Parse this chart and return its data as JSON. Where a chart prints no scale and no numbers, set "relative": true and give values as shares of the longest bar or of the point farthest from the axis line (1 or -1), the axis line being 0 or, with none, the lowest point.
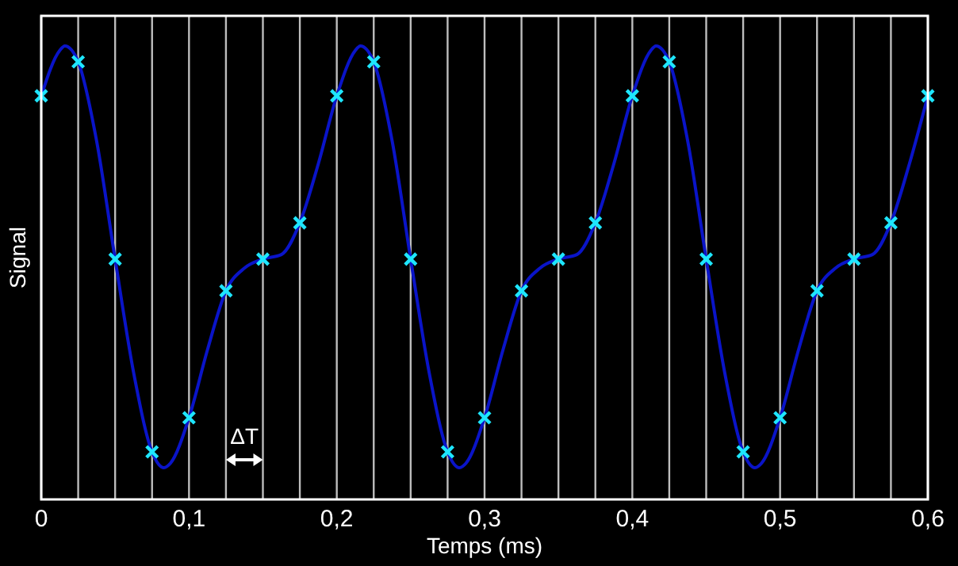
{
  "chart_data": {
    "type": "line",
    "relative": true,
    "xlabel": "Temps (ms)",
    "ylabel": "Signal",
    "xlim": [
      0,
      0.6
    ],
    "xticks": [
      0,
      {
        "value": 0.025,
        "label": null
      },
      {
        "value": 0.05,
        "label": null
      },
      {
        "value": 0.075,
        "label": null
      },
      {
        "value": 0.1,
        "label": "0,1"
      },
      {
        "value": 0.125,
        "label": null
      },
      {
        "value": 0.15,
        "label": null
      },
      {
        "value": 0.175,
        "label": null
      },
      {
        "value": 0.2,
        "label": "0,2"
      },
      {
        "value": 0.225,
        "label": null
      },
      {
        "value": 0.25,
        "label": null
      },
      {
        "value": 0.275,
        "label": null
      },
      {
        "value": 0.3,
        "label": "0,3"
      },
      {
        "value": 0.325,
        "label": null
      },
      {
        "value": 0.35,
        "label": null
      },
      {
        "value": 0.375,
        "label": null
      },
      {
        "value": 0.4,
        "label": "0,4"
      },
      {
        "value": 0.425,
        "label": null
      },
      {
        "value": 0.45,
        "label": null
      },
      {
        "value": 0.475,
        "label": null
      },
      {
        "value": 0.5,
        "label": "0,5"
      },
      {
        "value": 0.525,
        "label": null
      },
      {
        "value": 0.55,
        "label": null
      },
      {
        "value": 0.575,
        "label": null
      },
      {
        "value": 0.6,
        "label": "0,6"
      }
    ],
    "grid": "x",
    "annotations": [
      "ΔT"
    ],
    "series": [
      {
        "color": "#0a14c8",
        "marker": "none",
        "x": [
          0,
          0.0125,
          0.016,
          0.025,
          0.0375,
          0.05,
          0.0625,
          0.075,
          0.083,
          0.0875,
          0.1,
          0.1125,
          0.125,
          0.1375,
          0.15,
          0.1625,
          0.175,
          0.1875,
          0.2,
          0.2125,
          0.216,
          0.225,
          0.2375,
          0.25,
          0.2625,
          0.275,
          0.283,
          0.2875,
          0.3,
          0.3125,
          0.325,
          0.3375,
          0.35,
          0.3625,
          0.375,
          0.3875,
          0.4,
          0.4125,
          0.416,
          0.425,
          0.4375,
          0.45,
          0.4625,
          0.475,
          0.483,
          0.4875,
          0.5,
          0.5125,
          0.525,
          0.5375,
          0.55,
          0.5625,
          0.575,
          0.5875,
          0.6
        ],
        "values": [
          0.89,
          0.99,
          1,
          0.965,
          0.79,
          0.53,
          0.28,
          0.105,
          0.07,
          0.08,
          0.18,
          0.33,
          0.46,
          0.51,
          0.53,
          0.54,
          0.61,
          0.74,
          0.89,
          0.99,
          1,
          0.965,
          0.79,
          0.53,
          0.28,
          0.105,
          0.07,
          0.08,
          0.18,
          0.33,
          0.46,
          0.51,
          0.53,
          0.54,
          0.61,
          0.74,
          0.89,
          0.99,
          1,
          0.965,
          0.79,
          0.53,
          0.28,
          0.105,
          0.07,
          0.08,
          0.18,
          0.33,
          0.46,
          0.51,
          0.53,
          0.54,
          0.61,
          0.74,
          0.89
        ]
      },
      {
        "type": "scatter",
        "color": "#1ee6ff",
        "marker": "cross",
        "x": [
          0,
          0.025,
          0.05,
          0.075,
          0.1,
          0.125,
          0.15,
          0.175,
          0.2,
          0.225,
          0.25,
          0.275,
          0.3,
          0.325,
          0.35,
          0.375,
          0.4,
          0.425,
          0.45,
          0.475,
          0.5,
          0.525,
          0.55,
          0.575,
          0.6
        ],
        "values": [
          0.89,
          0.965,
          0.53,
          0.105,
          0.18,
          0.46,
          0.53,
          0.61,
          0.89,
          0.965,
          0.53,
          0.105,
          0.18,
          0.46,
          0.53,
          0.61,
          0.89,
          0.965,
          0.53,
          0.105,
          0.18,
          0.46,
          0.53,
          0.61,
          0.89
        ]
      }
    ]
  }
}
